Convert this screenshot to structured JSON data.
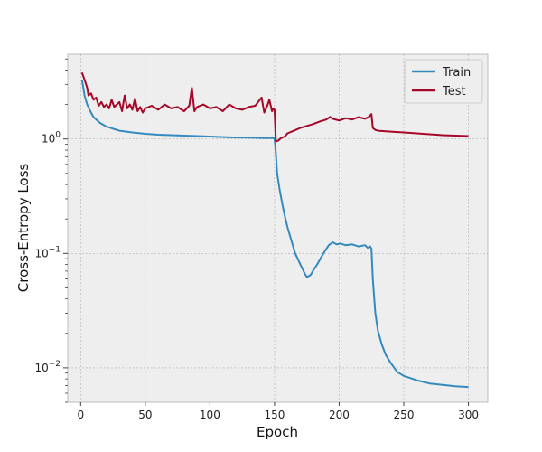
{
  "chart_data": {
    "type": "line",
    "title": "",
    "xlabel": "Epoch",
    "ylabel": "Cross-Entropy Loss",
    "yscale": "log",
    "xlim": [
      -10,
      315
    ],
    "ylim": [
      0.005,
      5.5
    ],
    "x_ticks": [
      0,
      50,
      100,
      150,
      200,
      250,
      300
    ],
    "y_ticks": [
      {
        "value": 1,
        "base": "10",
        "exp": "0"
      },
      {
        "value": 0.1,
        "base": "10",
        "exp": "−1"
      },
      {
        "value": 0.01,
        "base": "10",
        "exp": "−2"
      }
    ],
    "grid": true,
    "legend_position": "top-right",
    "series": [
      {
        "name": "Train",
        "color": "#348ABD",
        "x": [
          1,
          3,
          5,
          8,
          10,
          15,
          20,
          30,
          40,
          50,
          60,
          70,
          80,
          90,
          100,
          110,
          120,
          130,
          140,
          148,
          150,
          151,
          152,
          154,
          156,
          158,
          160,
          163,
          166,
          170,
          173,
          175,
          178,
          180,
          183,
          186,
          189,
          192,
          195,
          198,
          201,
          205,
          210,
          215,
          220,
          222,
          224,
          225,
          226,
          228,
          230,
          233,
          236,
          240,
          245,
          250,
          260,
          270,
          280,
          290,
          300
        ],
        "y": [
          3.3,
          2.4,
          2.0,
          1.7,
          1.55,
          1.38,
          1.28,
          1.18,
          1.14,
          1.11,
          1.09,
          1.08,
          1.07,
          1.06,
          1.05,
          1.04,
          1.03,
          1.03,
          1.02,
          1.02,
          1.01,
          0.75,
          0.5,
          0.36,
          0.27,
          0.21,
          0.17,
          0.13,
          0.1,
          0.08,
          0.068,
          0.062,
          0.065,
          0.071,
          0.08,
          0.092,
          0.105,
          0.118,
          0.125,
          0.12,
          0.122,
          0.118,
          0.12,
          0.115,
          0.118,
          0.112,
          0.115,
          0.11,
          0.06,
          0.03,
          0.021,
          0.016,
          0.013,
          0.011,
          0.0092,
          0.0085,
          0.0078,
          0.0073,
          0.0071,
          0.0069,
          0.0068
        ]
      },
      {
        "name": "Test",
        "color": "#A60628",
        "x": [
          1,
          3,
          5,
          6,
          8,
          10,
          12,
          14,
          16,
          18,
          20,
          22,
          24,
          26,
          28,
          30,
          32,
          34,
          36,
          38,
          40,
          42,
          44,
          46,
          48,
          50,
          55,
          60,
          65,
          70,
          75,
          80,
          84,
          86,
          88,
          90,
          95,
          100,
          105,
          110,
          115,
          120,
          125,
          130,
          135,
          140,
          142,
          144,
          146,
          148,
          149,
          150,
          151,
          153,
          155,
          158,
          160,
          165,
          170,
          175,
          180,
          185,
          190,
          193,
          195,
          200,
          205,
          210,
          215,
          220,
          223,
          225,
          226,
          228,
          230,
          240,
          250,
          260,
          270,
          280,
          290,
          300
        ],
        "y": [
          3.8,
          3.3,
          2.8,
          2.4,
          2.5,
          2.2,
          2.3,
          1.95,
          2.1,
          1.9,
          2.0,
          1.85,
          2.2,
          1.9,
          2.0,
          2.1,
          1.75,
          2.4,
          1.85,
          2.0,
          1.8,
          2.25,
          1.75,
          1.9,
          1.7,
          1.85,
          1.95,
          1.8,
          2.0,
          1.85,
          1.9,
          1.75,
          1.95,
          2.8,
          1.75,
          1.9,
          2.0,
          1.85,
          1.9,
          1.75,
          2.0,
          1.85,
          1.8,
          1.9,
          1.95,
          2.3,
          1.7,
          1.9,
          2.2,
          1.75,
          1.85,
          1.8,
          0.95,
          0.97,
          1.02,
          1.05,
          1.12,
          1.18,
          1.25,
          1.3,
          1.35,
          1.42,
          1.48,
          1.56,
          1.5,
          1.45,
          1.52,
          1.48,
          1.55,
          1.5,
          1.56,
          1.65,
          1.25,
          1.2,
          1.18,
          1.16,
          1.14,
          1.12,
          1.1,
          1.08,
          1.07,
          1.06
        ]
      }
    ]
  }
}
